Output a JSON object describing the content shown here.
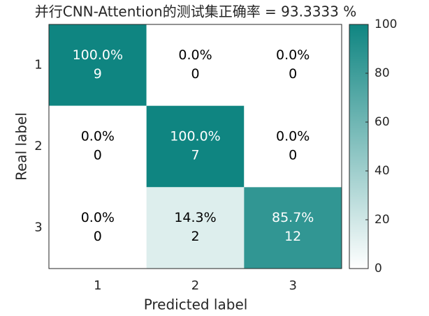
{
  "chart_data": {
    "type": "heatmap",
    "title": "并行CNN-Attention的测试集正确率 = 93.3333 %",
    "x_label": "Predicted label",
    "y_label": "Real label",
    "x_categories": [
      "1",
      "2",
      "3"
    ],
    "y_categories": [
      "1",
      "2",
      "3"
    ],
    "values": [
      [
        100,
        0,
        0
      ],
      [
        0,
        100,
        0
      ],
      [
        0,
        14.3,
        85.7
      ]
    ],
    "value_labels": [
      [
        "100.0%",
        "0.0%",
        "0.0%"
      ],
      [
        "0.0%",
        "100.0%",
        "0.0%"
      ],
      [
        "0.0%",
        "14.3%",
        "85.7%"
      ]
    ],
    "counts": [
      [
        9,
        0,
        0
      ],
      [
        0,
        7,
        0
      ],
      [
        0,
        2,
        12
      ]
    ],
    "colormap": [
      "#ffffff",
      "#0f8581"
    ],
    "clim": [
      0,
      100
    ],
    "cticks": [
      0,
      20,
      40,
      60,
      80,
      100
    ]
  }
}
